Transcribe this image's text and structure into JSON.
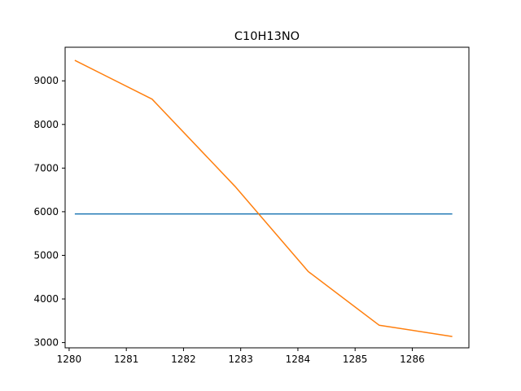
{
  "chart_data": {
    "type": "line",
    "title": "C10H13NO",
    "xlabel": "",
    "ylabel": "",
    "xlim": [
      1279.93,
      1286.99
    ],
    "ylim": [
      2880,
      9770
    ],
    "xticks": [
      1280,
      1281,
      1282,
      1283,
      1284,
      1285,
      1286
    ],
    "yticks": [
      3000,
      4000,
      5000,
      6000,
      7000,
      8000,
      9000
    ],
    "grid": false,
    "series": [
      {
        "color": "#1f77b4",
        "x": [
          1280.1,
          1286.7
        ],
        "y": [
          5950,
          5950
        ]
      },
      {
        "color": "#ff7f0e",
        "x": [
          1280.1,
          1281.45,
          1282.9,
          1284.18,
          1285.42,
          1286.7
        ],
        "y": [
          9470,
          8580,
          6580,
          4630,
          3400,
          3140
        ]
      }
    ]
  }
}
